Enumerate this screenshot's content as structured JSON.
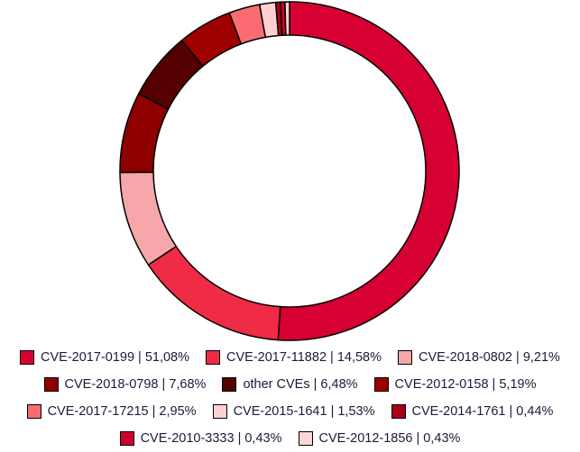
{
  "chart_data": {
    "type": "pie",
    "donut": true,
    "legend_position": "bottom",
    "slices": [
      {
        "label": "CVE-2017-0199 | 51,08%",
        "value": 51.08,
        "color": "#d60032"
      },
      {
        "label": "CVE-2017-11882 | 14,58%",
        "value": 14.58,
        "color": "#ef2b45"
      },
      {
        "label": "CVE-2018-0802 | 9,21%",
        "value": 9.21,
        "color": "#f7a6aa"
      },
      {
        "label": "CVE-2018-0798 | 7,68%",
        "value": 7.68,
        "color": "#8e0000"
      },
      {
        "label": "other CVEs | 6,48%",
        "value": 6.48,
        "color": "#540000"
      },
      {
        "label": "CVE-2012-0158 | 5,19%",
        "value": 5.19,
        "color": "#9e0000"
      },
      {
        "label": "CVE-2017-17215 | 2,95%",
        "value": 2.95,
        "color": "#fa6b72"
      },
      {
        "label": "CVE-2015-1641 | 1,53%",
        "value": 1.53,
        "color": "#ffd0d0"
      },
      {
        "label": "CVE-2014-1761 | 0,44%",
        "value": 0.44,
        "color": "#a90014"
      },
      {
        "label": "CVE-2010-3333 | 0,43%",
        "value": 0.43,
        "color": "#cc0030"
      },
      {
        "label": "CVE-2012-1856 | 0,43%",
        "value": 0.43,
        "color": "#ffd6d6"
      }
    ]
  }
}
